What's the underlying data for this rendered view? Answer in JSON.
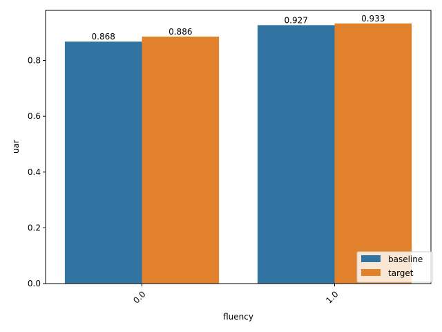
{
  "chart_data": {
    "type": "bar",
    "categories": [
      "0.0",
      "1.0"
    ],
    "series": [
      {
        "name": "baseline",
        "values": [
          0.868,
          0.927
        ],
        "color": "#3274a1"
      },
      {
        "name": "target",
        "values": [
          0.886,
          0.933
        ],
        "color": "#e1812c"
      }
    ],
    "data_labels": [
      [
        "0.868",
        "0.927"
      ],
      [
        "0.886",
        "0.933"
      ]
    ],
    "xlabel": "fluency",
    "ylabel": "uar",
    "ylim": [
      0,
      0.98
    ],
    "yticks": [
      0.0,
      0.2,
      0.4,
      0.6,
      0.8
    ],
    "ytick_labels": [
      "0.0",
      "0.2",
      "0.4",
      "0.6",
      "0.8"
    ],
    "xtick_rotation_deg": 45,
    "grid": false,
    "legend_position": "lower-right"
  }
}
